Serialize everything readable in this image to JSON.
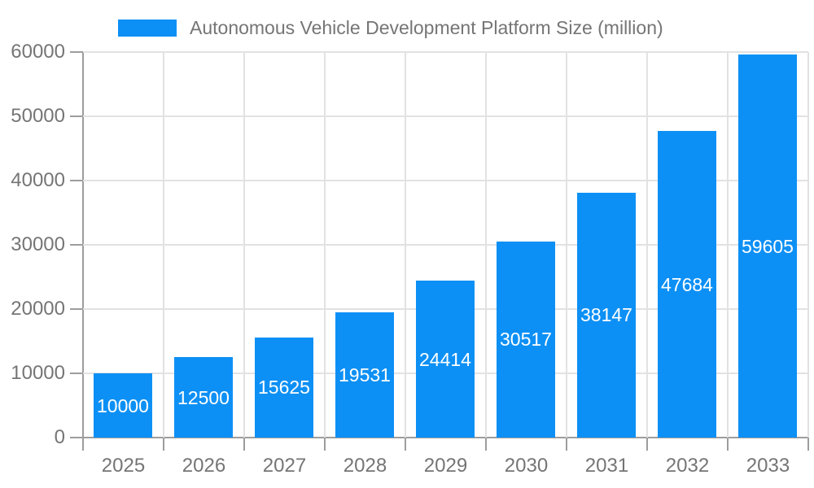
{
  "chart_data": {
    "type": "bar",
    "title": "Autonomous Vehicle Development Platform Size (million)",
    "categories": [
      "2025",
      "2026",
      "2027",
      "2028",
      "2029",
      "2030",
      "2031",
      "2032",
      "2033"
    ],
    "series": [
      {
        "name": "Autonomous Vehicle Development Platform Size (million)",
        "values": [
          10000,
          12500,
          15625,
          19531,
          24414,
          30517,
          38147,
          47684,
          59605
        ]
      }
    ],
    "bar_value_labels": [
      "10000",
      "12500",
      "15625",
      "19531",
      "24414",
      "30517",
      "38147",
      "47684",
      "59605"
    ],
    "xlabel": "",
    "ylabel": "",
    "ylim": [
      0,
      60000
    ],
    "yticks": [
      0,
      10000,
      20000,
      30000,
      40000,
      50000,
      60000
    ],
    "grid": true,
    "legend_position": "top",
    "value_label_position": "inside-center",
    "colors": {
      "bar": "#0d90f5",
      "gridline": "#e2e2e2",
      "axis": "#9d9d9d",
      "tick_text": "#757575",
      "value_text": "#ffffff",
      "background": "#ffffff"
    }
  }
}
